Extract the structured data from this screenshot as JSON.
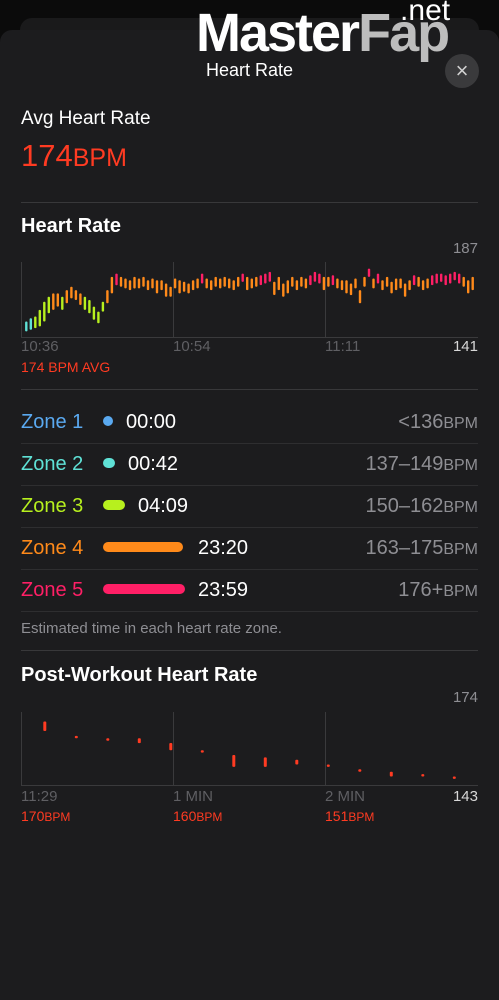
{
  "header": {
    "title": "Heart Rate",
    "close_icon": "×",
    "watermark_main": "Master",
    "watermark_fap": "Fap",
    "watermark_tld": ".net"
  },
  "summary": {
    "avg_label": "Avg Heart Rate",
    "avg_value": "174",
    "avg_unit": "BPM"
  },
  "heart_rate_chart": {
    "title": "Heart Rate",
    "y_max_label": "187",
    "y_min_label": "141",
    "x_ticks": [
      "10:36",
      "10:54",
      "11:11"
    ],
    "avg_note": "174 BPM AVG"
  },
  "zones": [
    {
      "name": "Zone 1",
      "time": "00:00",
      "range": "<136",
      "unit": "BPM",
      "color": "#5aa9f0"
    },
    {
      "name": "Zone 2",
      "time": "00:42",
      "range": "137–149",
      "unit": "BPM",
      "color": "#5fe1d6"
    },
    {
      "name": "Zone 3",
      "time": "04:09",
      "range": "150–162",
      "unit": "BPM",
      "color": "#b7f01e"
    },
    {
      "name": "Zone 4",
      "time": "23:20",
      "range": "163–175",
      "unit": "BPM",
      "color": "#ff8a1a"
    },
    {
      "name": "Zone 5",
      "time": "23:59",
      "range": "176+",
      "unit": "BPM",
      "color": "#ff1f66"
    }
  ],
  "zones_note": "Estimated time in each heart rate zone.",
  "post_workout": {
    "title": "Post-Workout Heart Rate",
    "y_max_label": "174",
    "y_min_label": "143",
    "x_ticks": [
      "11:29",
      "1 MIN",
      "2 MIN"
    ],
    "readings": [
      {
        "value": "170",
        "unit": "BPM"
      },
      {
        "value": "160",
        "unit": "BPM"
      },
      {
        "value": "151",
        "unit": "BPM"
      }
    ]
  },
  "chart_data": [
    {
      "type": "bar",
      "title": "Heart Rate",
      "xlabel": "",
      "ylabel": "",
      "ylim": [
        141,
        187
      ],
      "x_ticks": [
        "10:36",
        "10:54",
        "11:11"
      ],
      "average": 174,
      "series": [
        {
          "values": [
            [
              145,
              151
            ],
            [
              146,
              153
            ],
            [
              147,
              154
            ],
            [
              148,
              158
            ],
            [
              151,
              163
            ],
            [
              156,
              166
            ],
            [
              158,
              168
            ],
            [
              160,
              168
            ],
            [
              158,
              166
            ],
            [
              162,
              170
            ],
            [
              165,
              172
            ],
            [
              164,
              170
            ],
            [
              161,
              168
            ],
            [
              158,
              166
            ],
            [
              156,
              164
            ],
            [
              152,
              160
            ],
            [
              150,
              157
            ],
            [
              157,
              163
            ],
            [
              162,
              170
            ],
            [
              168,
              178
            ],
            [
              173,
              180
            ],
            [
              172,
              178
            ],
            [
              171,
              177
            ],
            [
              170,
              176
            ],
            [
              171,
              178
            ],
            [
              171,
              177
            ],
            [
              172,
              178
            ],
            [
              170,
              176
            ],
            [
              171,
              177
            ],
            [
              168,
              176
            ],
            [
              170,
              176
            ],
            [
              166,
              174
            ],
            [
              166,
              172
            ],
            [
              171,
              177
            ],
            [
              168,
              176
            ],
            [
              169,
              175
            ],
            [
              168,
              174
            ],
            [
              170,
              176
            ],
            [
              171,
              177
            ],
            [
              174,
              180
            ],
            [
              171,
              177
            ],
            [
              170,
              176
            ],
            [
              172,
              178
            ],
            [
              171,
              177
            ],
            [
              172,
              178
            ],
            [
              171,
              177
            ],
            [
              170,
              176
            ],
            [
              172,
              178
            ],
            [
              175,
              180
            ],
            [
              170,
              178
            ],
            [
              171,
              177
            ],
            [
              172,
              178
            ],
            [
              173,
              179
            ],
            [
              174,
              180
            ],
            [
              175,
              181
            ],
            [
              167,
              175
            ],
            [
              170,
              178
            ],
            [
              166,
              174
            ],
            [
              168,
              176
            ],
            [
              172,
              178
            ],
            [
              170,
              176
            ],
            [
              172,
              178
            ],
            [
              171,
              177
            ],
            [
              173,
              179
            ],
            [
              175,
              181
            ],
            [
              174,
              180
            ],
            [
              170,
              178
            ],
            [
              172,
              178
            ],
            [
              173,
              179
            ],
            [
              171,
              177
            ],
            [
              170,
              176
            ],
            [
              168,
              176
            ],
            [
              167,
              174
            ],
            [
              171,
              177
            ],
            [
              162,
              170
            ],
            [
              172,
              178
            ],
            [
              178,
              183
            ],
            [
              171,
              177
            ],
            [
              174,
              180
            ],
            [
              170,
              176
            ],
            [
              172,
              178
            ],
            [
              168,
              175
            ],
            [
              170,
              177
            ],
            [
              171,
              177
            ],
            [
              166,
              174
            ],
            [
              170,
              176
            ],
            [
              173,
              179
            ],
            [
              172,
              178
            ],
            [
              170,
              176
            ],
            [
              171,
              177
            ],
            [
              173,
              179
            ],
            [
              174,
              180
            ],
            [
              175,
              180
            ],
            [
              173,
              179
            ],
            [
              174,
              180
            ],
            [
              176,
              181
            ],
            [
              174,
              180
            ],
            [
              172,
              178
            ],
            [
              168,
              176
            ],
            [
              170,
              178
            ]
          ]
        }
      ]
    },
    {
      "type": "bar",
      "title": "Post-Workout Heart Rate",
      "xlabel": "",
      "ylabel": "",
      "ylim": [
        143,
        174
      ],
      "x_ticks": [
        "11:29",
        "1 MIN",
        "2 MIN"
      ],
      "series": [
        {
          "values": [
            [
              166,
              170
            ],
            [
              163,
              164
            ],
            [
              162,
              163
            ],
            [
              161,
              163
            ],
            [
              158,
              161
            ],
            [
              157,
              158
            ],
            [
              151,
              156
            ],
            [
              151,
              155
            ],
            [
              152,
              154
            ],
            [
              151,
              152
            ],
            [
              149,
              150
            ],
            [
              147,
              149
            ],
            [
              147,
              148
            ],
            [
              146,
              147
            ]
          ]
        }
      ]
    }
  ]
}
